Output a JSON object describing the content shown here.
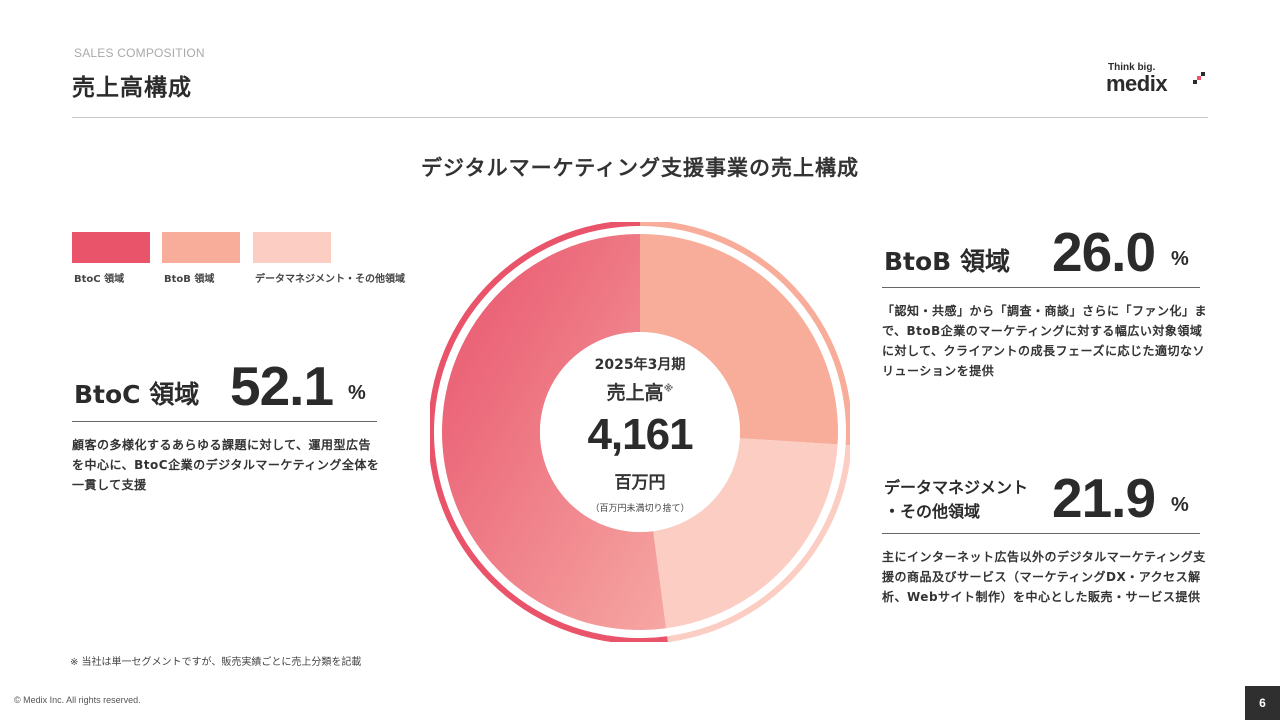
{
  "header": {
    "eyebrow": "SALES COMPOSITION",
    "title": "売上高構成"
  },
  "logo": {
    "tagline": "Think big.",
    "wordmark": "medix"
  },
  "subtitle": "デジタルマーケティング支援事業の売上構成",
  "legend": [
    {
      "label": "BtoC 領域",
      "color": "#e9546b"
    },
    {
      "label": "BtoB 領域",
      "color": "#f8ad9a"
    },
    {
      "label": "データマネジメント・その他領域",
      "color": "#fbcdc3"
    }
  ],
  "segments": {
    "btoc": {
      "title": "BtoC 領域",
      "value": "52.1",
      "unit": "%",
      "description": "顧客の多様化するあらゆる課題に対して、運用型広告を中心に、BtoC企業のデジタルマーケティング全体を一貫して支援"
    },
    "btob": {
      "title": "BtoB 領域",
      "value": "26.0",
      "unit": "%",
      "description": "「認知・共感」から「調査・商談」さらに「ファン化」まで、BtoB企業のマーケティングに対する幅広い対象領域に対して、クライアントの成長フェーズに応じた適切なソリューションを提供"
    },
    "data": {
      "title_line1": "データマネジメント",
      "title_line2": "・その他領域",
      "value": "21.9",
      "unit": "%",
      "description": "主にインターネット広告以外のデジタルマーケティング支援の商品及びサービス（マーケティングDX・アクセス解析、Webサイト制作）を中心とした販売・サービス提供"
    }
  },
  "center": {
    "fiscal_year": "2025年3月期",
    "label": "売上高",
    "label_mark": "※",
    "value": "4,161",
    "unit": "百万円",
    "note": "（百万円未満切り捨て）"
  },
  "chart_data": {
    "type": "pie",
    "categories": [
      "BtoC 領域",
      "BtoB 領域",
      "データマネジメント・その他領域"
    ],
    "values": [
      52.1,
      26.0,
      21.9
    ],
    "colors": [
      "#e9546b",
      "#f8ad9a",
      "#fbcdc3"
    ],
    "title": "デジタルマーケティング支援事業の売上構成"
  },
  "footnote": "※ 当社は単一セグメントですが、販売実績ごとに売上分類を記載",
  "copyright": "© Medix Inc. All rights reserved.",
  "page_number": "6"
}
